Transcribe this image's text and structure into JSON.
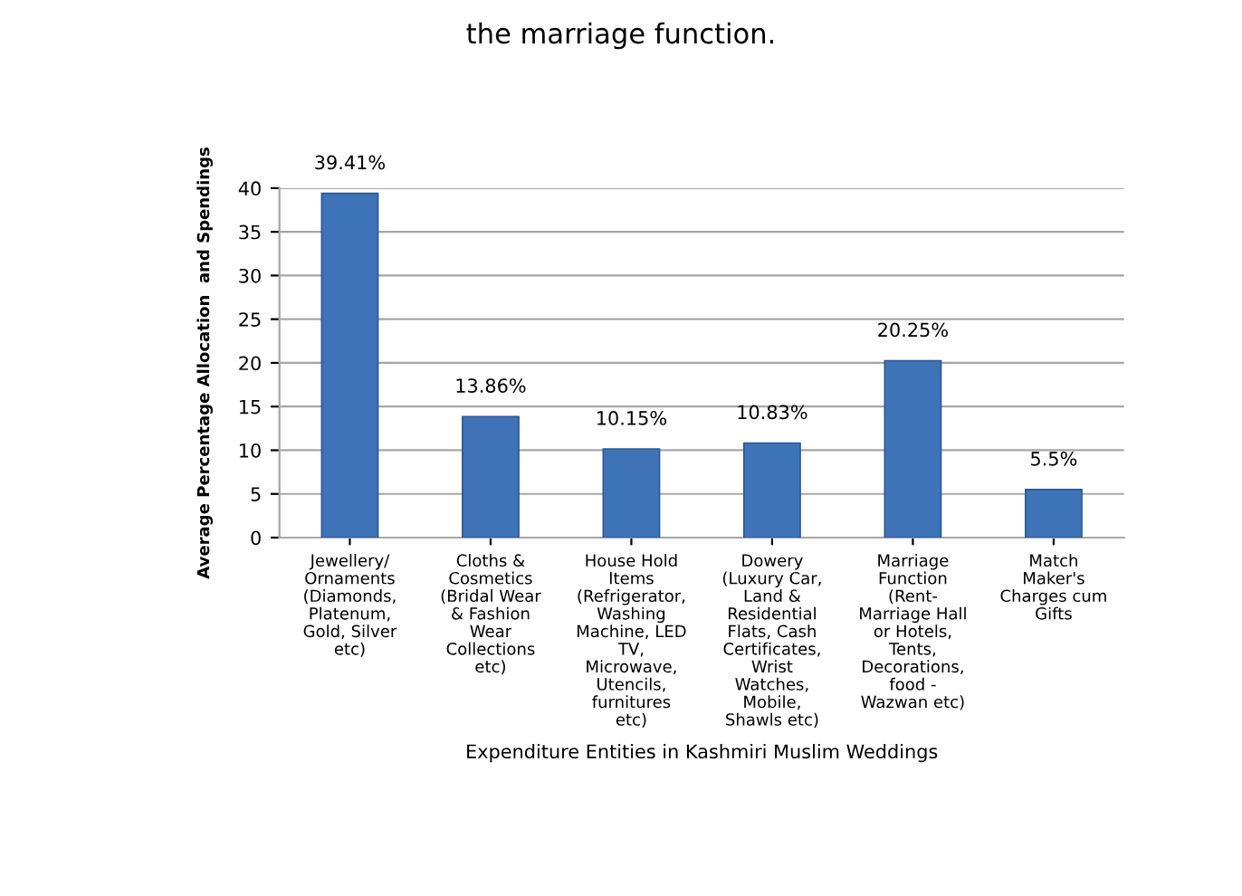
{
  "chart_data": {
    "type": "bar",
    "categories": [
      "Jewellery/\nOrnaments\n(Diamonds,\nPlatenum,\nGold, Silver\netc)",
      "Cloths &\nCosmetics\n(Bridal Wear\n& Fashion\nWear\nCollections\netc)",
      "House Hold\nItems\n(Refrigerator,\nWashing\nMachine, LED\nTV,\nMicrowave,\nUtencils,\nfurnitures\netc)",
      "Dowery\n(Luxury Car,\nLand &\nResidential\nFlats, Cash\nCertificates,\nWrist\nWatches,\nMobile,\nShawls etc)",
      "Marriage\nFunction\n(Rent-\nMarriage Hall\nor Hotels,\nTents,\nDecorations,\nfood -\nWazwan etc)",
      "Match\nMaker's\nCharges cum\nGifts"
    ],
    "values": [
      39.41,
      13.86,
      10.15,
      10.83,
      20.25,
      5.5
    ],
    "value_labels": [
      "39.41%",
      "13.86%",
      "10.15%",
      "10.83%",
      "20.25%",
      "5.5%"
    ],
    "color": "#3f73b8",
    "xlabel": "Expenditure Entities in Kashmiri Muslim Weddings",
    "ylabel": "Average Percentage Allocation  and Spendings",
    "ylim": [
      0,
      40
    ],
    "yticks": [
      0,
      5,
      10,
      15,
      20,
      25,
      30,
      35,
      40
    ],
    "grid": "y",
    "annotations": [
      "the marriage function."
    ]
  }
}
